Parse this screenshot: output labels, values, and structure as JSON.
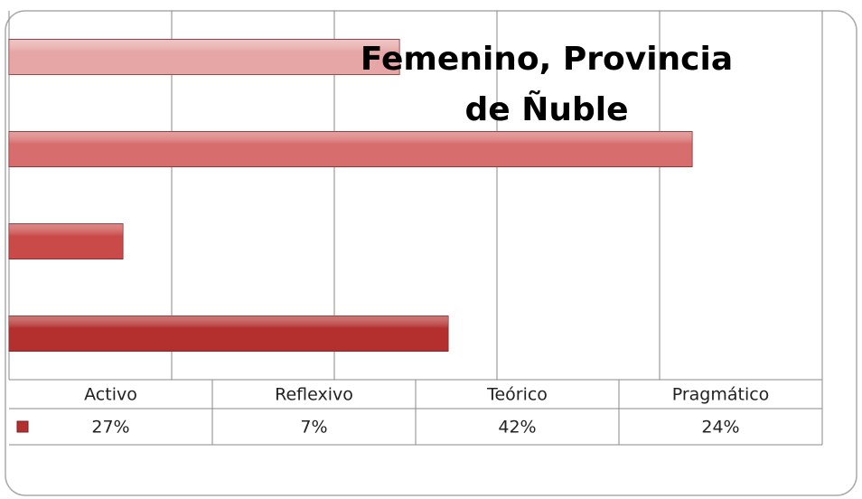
{
  "chart_data": {
    "type": "bar",
    "orientation": "horizontal",
    "title": "Femenino, Provincia de Ñuble",
    "categories": [
      "Activo",
      "Reflexivo",
      "Teórico",
      "Pragmático"
    ],
    "values": [
      27,
      7,
      42,
      24
    ],
    "value_labels": [
      "27%",
      "7%",
      "42%",
      "24%"
    ],
    "colors": [
      "#b3302f",
      "#c94a48",
      "#d76e6d",
      "#e6a6a6"
    ],
    "xlim": [
      0,
      50
    ],
    "xticks": [
      0,
      10,
      20,
      30,
      40,
      50
    ],
    "grid": true
  }
}
